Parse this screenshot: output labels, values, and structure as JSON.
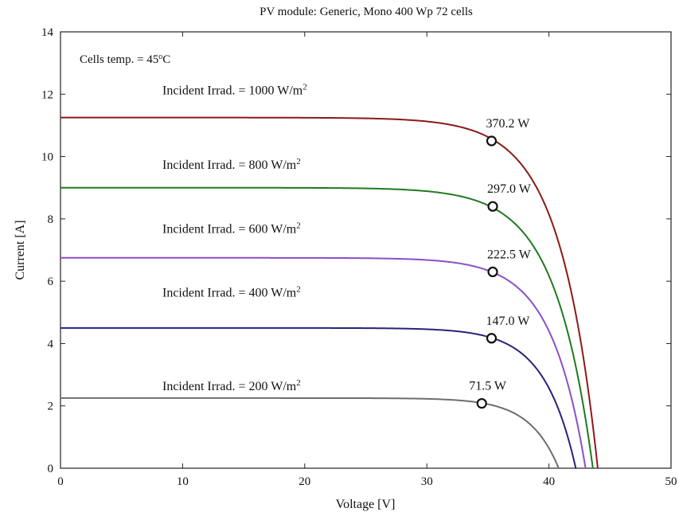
{
  "chart_data": {
    "type": "line",
    "title": "PV module: Generic, Mono 400 Wp 72 cells",
    "xlabel": "Voltage [V]",
    "ylabel": "Current [A]",
    "xlim": [
      0,
      50
    ],
    "ylim": [
      0,
      14
    ],
    "x_ticks": [
      0,
      10,
      20,
      30,
      40,
      50
    ],
    "y_ticks": [
      0,
      2,
      4,
      6,
      8,
      10,
      12,
      14
    ],
    "grid": false,
    "annotation": {
      "prefix": "Cells temp. = 45",
      "superscript": "o",
      "suffix": "C"
    },
    "series": [
      {
        "name": "Incident Irrad. = 1000 W/m",
        "name_superscript": "2",
        "color": "#8b1a1a",
        "isc": 11.25,
        "voc": 44.0,
        "vmp": 35.3,
        "imp": 10.5,
        "mpp_label": "370.2 W"
      },
      {
        "name": "Incident Irrad. = 800 W/m",
        "name_superscript": "2",
        "color": "#1f7a1f",
        "isc": 9.0,
        "voc": 43.6,
        "vmp": 35.4,
        "imp": 8.4,
        "mpp_label": "297.0 W"
      },
      {
        "name": "Incident Irrad. = 600 W/m",
        "name_superscript": "2",
        "color": "#8a4fc8",
        "isc": 6.75,
        "voc": 43.0,
        "vmp": 35.4,
        "imp": 6.3,
        "mpp_label": "222.5 W"
      },
      {
        "name": "Incident Irrad. = 400 W/m",
        "name_superscript": "2",
        "color": "#26237a",
        "isc": 4.5,
        "voc": 42.2,
        "vmp": 35.3,
        "imp": 4.17,
        "mpp_label": "147.0 W"
      },
      {
        "name": "Incident Irrad. = 200 W/m",
        "name_superscript": "2",
        "color": "#6e6e6e",
        "isc": 2.25,
        "voc": 40.8,
        "vmp": 34.5,
        "imp": 2.08,
        "mpp_label": "71.5 W"
      }
    ]
  }
}
